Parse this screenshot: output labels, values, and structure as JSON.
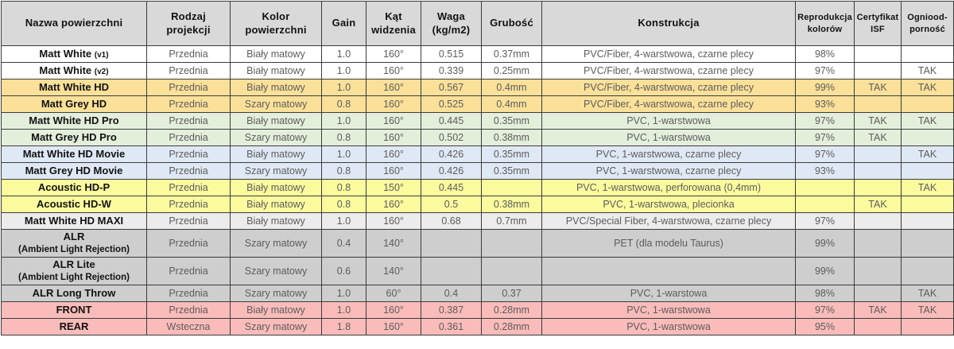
{
  "colors": {
    "header_bg": "#d9d9d9",
    "border": "#3b3b3b",
    "text_dark": "#121212",
    "text_grey": "#5c5c5c",
    "row_white": "#ffffff",
    "row_wheat": "#fbe099",
    "row_green": "#e4efdb",
    "row_blue": "#dfe9f5",
    "row_yellow": "#fbfb9e",
    "row_lightgrey": "#ececec",
    "row_grey": "#cecece",
    "row_pink": "#fabcba"
  },
  "chart_data": {
    "type": "table",
    "title": "",
    "columns": [
      {
        "id": "name",
        "label": "Nazwa powierzchni",
        "small": false
      },
      {
        "id": "projection",
        "label": "Rodzaj\nprojekcji",
        "small": false
      },
      {
        "id": "color",
        "label": "Kolor\npowierzchni",
        "small": false
      },
      {
        "id": "gain",
        "label": "Gain",
        "small": false
      },
      {
        "id": "angle",
        "label": "Kąt\nwidzenia",
        "small": false
      },
      {
        "id": "weight",
        "label": "Waga\n(kg/m2)",
        "small": false
      },
      {
        "id": "thickness",
        "label": "Grubość",
        "small": false
      },
      {
        "id": "construction",
        "label": "Konstrukcja",
        "small": false
      },
      {
        "id": "reproduction",
        "label": "Reprodukcja\nkolorów",
        "small": true
      },
      {
        "id": "isf",
        "label": "Certyfikat\nISF",
        "small": true
      },
      {
        "id": "fire",
        "label": "Ogniood-\nporność",
        "small": true
      }
    ],
    "rows": [
      {
        "name": "Matt White",
        "suffix": "(v1)",
        "name2": "",
        "bg": "white",
        "projection": "Przednia",
        "color": "Biały matowy",
        "gain": "1.0",
        "angle": "160°",
        "weight": "0.515",
        "thickness": "0.37mm",
        "construction": "PVC/Fiber, 4-warstwowa, czarne plecy",
        "reproduction": "98%",
        "isf": "",
        "fire": ""
      },
      {
        "name": "Matt White",
        "suffix": "(v2)",
        "name2": "",
        "bg": "white",
        "projection": "Przednia",
        "color": "Biały matowy",
        "gain": "1.0",
        "angle": "160°",
        "weight": "0.339",
        "thickness": "0.25mm",
        "construction": "PVC/Fiber, 4-warstwowa, czarne plecy",
        "reproduction": "97%",
        "isf": "",
        "fire": "TAK"
      },
      {
        "name": "Matt White HD",
        "suffix": "",
        "name2": "",
        "bg": "wheat",
        "projection": "Przednia",
        "color": "Biały matowy",
        "gain": "1.0",
        "angle": "160°",
        "weight": "0.567",
        "thickness": "0.4mm",
        "construction": "PVC/Fiber, 4-warstwowa, czarne plecy",
        "reproduction": "99%",
        "isf": "TAK",
        "fire": "TAK"
      },
      {
        "name": "Matt Grey HD",
        "suffix": "",
        "name2": "",
        "bg": "wheat",
        "projection": "Przednia",
        "color": "Szary matowy",
        "gain": "0.8",
        "angle": "160°",
        "weight": "0.525",
        "thickness": "0.4mm",
        "construction": "PVC/Fiber, 4-warstwowa, czarne plecy",
        "reproduction": "93%",
        "isf": "",
        "fire": ""
      },
      {
        "name": "Matt White HD Pro",
        "suffix": "",
        "name2": "",
        "bg": "green",
        "projection": "Przednia",
        "color": "Biały matowy",
        "gain": "1.0",
        "angle": "160°",
        "weight": "0.445",
        "thickness": "0.35mm",
        "construction": "PVC, 1-warstwowa",
        "reproduction": "97%",
        "isf": "TAK",
        "fire": "TAK"
      },
      {
        "name": "Matt Grey HD Pro",
        "suffix": "",
        "name2": "",
        "bg": "green",
        "projection": "Przednia",
        "color": "Szary matowy",
        "gain": "0.8",
        "angle": "160°",
        "weight": "0.502",
        "thickness": "0.38mm",
        "construction": "PVC, 1-warstwowa",
        "reproduction": "97%",
        "isf": "TAK",
        "fire": ""
      },
      {
        "name": "Matt White HD Movie",
        "suffix": "",
        "name2": "",
        "bg": "blue",
        "projection": "Przednia",
        "color": "Biały matowy",
        "gain": "1.0",
        "angle": "160°",
        "weight": "0.426",
        "thickness": "0.35mm",
        "construction": "PVC, 1-warstwowa, czarne plecy",
        "reproduction": "97%",
        "isf": "",
        "fire": "TAK"
      },
      {
        "name": "Matt Grey HD Movie",
        "suffix": "",
        "name2": "",
        "bg": "blue",
        "projection": "Przednia",
        "color": "Szary matowy",
        "gain": "0.8",
        "angle": "160°",
        "weight": "0.426",
        "thickness": "0.35mm",
        "construction": "PVC, 1-warstwowa, czarne plecy",
        "reproduction": "93%",
        "isf": "",
        "fire": ""
      },
      {
        "name": "Acoustic HD-P",
        "suffix": "",
        "name2": "",
        "bg": "yellow",
        "projection": "Przednia",
        "color": "Biały matowy",
        "gain": "0.8",
        "angle": "150°",
        "weight": "0.445",
        "thickness": "",
        "construction": "PVC, 1-warstwowa, perforowana (0,4mm)",
        "reproduction": "",
        "isf": "",
        "fire": "TAK"
      },
      {
        "name": "Acoustic HD-W",
        "suffix": "",
        "name2": "",
        "bg": "yellow",
        "projection": "Przednia",
        "color": "Biały matowy",
        "gain": "0.8",
        "angle": "160°",
        "weight": "0.5",
        "thickness": "0.38mm",
        "construction": "PVC, 1-warstwowa, plecionka",
        "reproduction": "",
        "isf": "TAK",
        "fire": ""
      },
      {
        "name": "Matt White HD MAXI",
        "suffix": "",
        "name2": "",
        "bg": "lightgrey",
        "projection": "Przednia",
        "color": "Biały matowy",
        "gain": "1.0",
        "angle": "160°",
        "weight": "0.68",
        "thickness": "0.7mm",
        "construction": "PVC/Special Fiber, 4-warstwowa, czarne plecy",
        "reproduction": "97%",
        "isf": "",
        "fire": ""
      },
      {
        "name": "ALR",
        "suffix": "",
        "name2": "(Ambient Light Rejection)",
        "bg": "grey",
        "projection": "Przednia",
        "color": "Szary matowy",
        "gain": "0.4",
        "angle": "140°",
        "weight": "",
        "thickness": "",
        "construction": "PET (dla modelu Taurus)",
        "reproduction": "99%",
        "isf": "",
        "fire": ""
      },
      {
        "name": "ALR Lite",
        "suffix": "",
        "name2": "(Ambient Light Rejection)",
        "bg": "grey",
        "projection": "Przednia",
        "color": "Szary matowy",
        "gain": "0.6",
        "angle": "140°",
        "weight": "",
        "thickness": "",
        "construction": "",
        "reproduction": "99%",
        "isf": "",
        "fire": ""
      },
      {
        "name": "ALR Long Throw",
        "suffix": "",
        "name2": "",
        "bg": "grey",
        "projection": "Przednia",
        "color": "Szary matowy",
        "gain": "1.0",
        "angle": "60°",
        "weight": "0.4",
        "thickness": "0.37",
        "construction": "PVC, 1-warstowa",
        "reproduction": "98%",
        "isf": "",
        "fire": "TAK"
      },
      {
        "name": "FRONT",
        "suffix": "",
        "name2": "",
        "bg": "pink",
        "projection": "Przednia",
        "color": "Biały matowy",
        "gain": "1.0",
        "angle": "160°",
        "weight": "0.387",
        "thickness": "0.28mm",
        "construction": "PVC, 1-warstwowa",
        "reproduction": "97%",
        "isf": "TAK",
        "fire": "TAK"
      },
      {
        "name": "REAR",
        "suffix": "",
        "name2": "",
        "bg": "pink",
        "projection": "Wsteczna",
        "color": "Szary matowy",
        "gain": "1.8",
        "angle": "160°",
        "weight": "0.361",
        "thickness": "0.28mm",
        "construction": "PVC, 1-warstwowa",
        "reproduction": "95%",
        "isf": "",
        "fire": ""
      }
    ]
  }
}
